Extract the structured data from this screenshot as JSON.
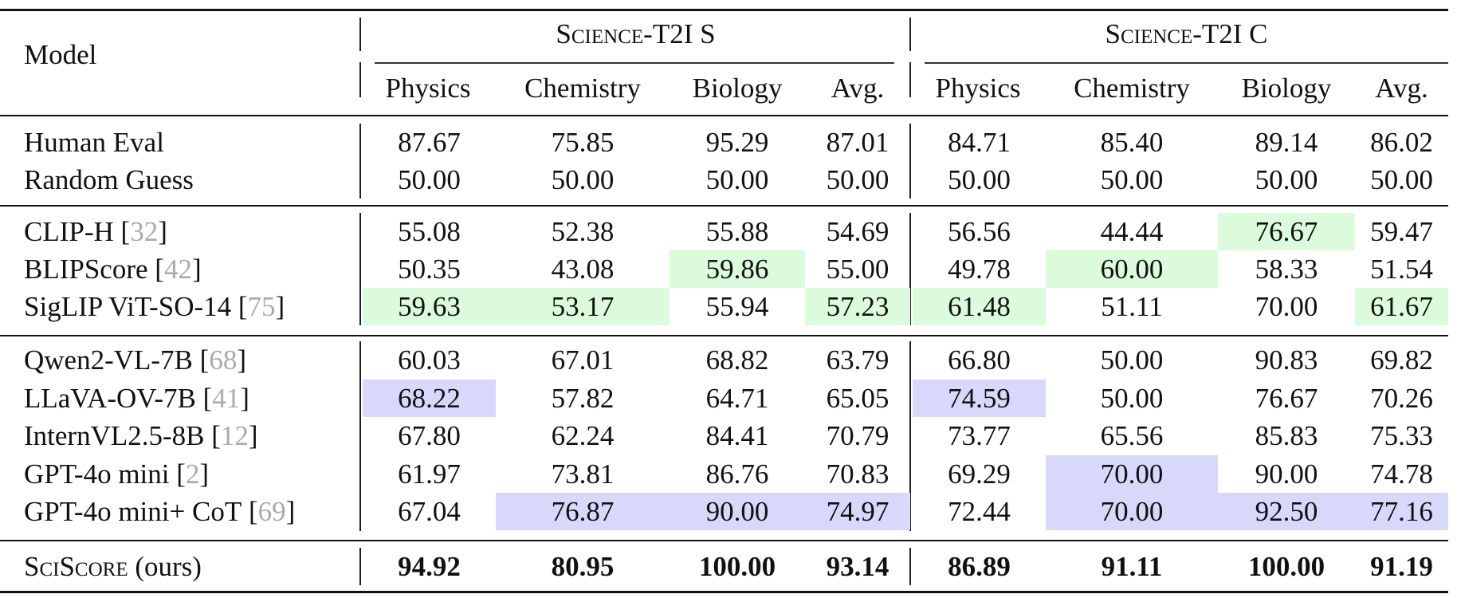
{
  "header": {
    "model_label": "Model",
    "groups": [
      "Science-T2I S",
      "Science-T2I C"
    ],
    "subjects": [
      "Physics",
      "Chemistry",
      "Biology",
      "Avg."
    ]
  },
  "colors": {
    "green_highlight": "#dcfbdc",
    "blue_highlight": "#d8d8fb",
    "citation": "#aaaaaa"
  },
  "groups": [
    [
      {
        "name": "Human Eval",
        "ref": "",
        "values": [
          "87.67",
          "75.85",
          "95.29",
          "87.01",
          "84.71",
          "85.40",
          "89.14",
          "86.02"
        ],
        "hl": []
      },
      {
        "name": "Random Guess",
        "ref": "",
        "values": [
          "50.00",
          "50.00",
          "50.00",
          "50.00",
          "50.00",
          "50.00",
          "50.00",
          "50.00"
        ],
        "hl": []
      }
    ],
    [
      {
        "name": "CLIP-H",
        "ref": "32",
        "values": [
          "55.08",
          "52.38",
          "55.88",
          "54.69",
          "56.56",
          "44.44",
          "76.67",
          "59.47"
        ],
        "hl": [
          6
        ],
        "hlcolor": "green"
      },
      {
        "name": "BLIPScore",
        "ref": "42",
        "values": [
          "50.35",
          "43.08",
          "59.86",
          "55.00",
          "49.78",
          "60.00",
          "58.33",
          "51.54"
        ],
        "hl": [
          2,
          5
        ],
        "hlcolor": "green"
      },
      {
        "name": "SigLIP ViT-SO-14",
        "ref": "75",
        "values": [
          "59.63",
          "53.17",
          "55.94",
          "57.23",
          "61.48",
          "51.11",
          "70.00",
          "61.67"
        ],
        "hl": [
          0,
          1,
          3,
          4,
          7
        ],
        "hlcolor": "green"
      }
    ],
    [
      {
        "name": "Qwen2-VL-7B",
        "ref": "68",
        "values": [
          "60.03",
          "67.01",
          "68.82",
          "63.79",
          "66.80",
          "50.00",
          "90.83",
          "69.82"
        ],
        "hl": []
      },
      {
        "name": "LLaVA-OV-7B",
        "ref": "41",
        "values": [
          "68.22",
          "57.82",
          "64.71",
          "65.05",
          "74.59",
          "50.00",
          "76.67",
          "70.26"
        ],
        "hl": [
          0,
          4
        ],
        "hlcolor": "blue"
      },
      {
        "name": "InternVL2.5-8B",
        "ref": "12",
        "values": [
          "67.80",
          "62.24",
          "84.41",
          "70.79",
          "73.77",
          "65.56",
          "85.83",
          "75.33"
        ],
        "hl": []
      },
      {
        "name": "GPT-4o mini",
        "ref": "2",
        "values": [
          "61.97",
          "73.81",
          "86.76",
          "70.83",
          "69.29",
          "70.00",
          "90.00",
          "74.78"
        ],
        "hl": [
          5
        ],
        "hlcolor": "blue"
      },
      {
        "name": "GPT-4o mini+ CoT",
        "ref": "69",
        "values": [
          "67.04",
          "76.87",
          "90.00",
          "74.97",
          "72.44",
          "70.00",
          "92.50",
          "77.16"
        ],
        "hl": [
          1,
          2,
          3,
          5,
          6,
          7
        ],
        "hlcolor": "blue"
      }
    ],
    [
      {
        "name": "SciScore",
        "suffix": " (ours)",
        "ref": "",
        "values": [
          "94.92",
          "80.95",
          "100.00",
          "93.14",
          "86.89",
          "91.11",
          "100.00",
          "91.19"
        ],
        "hl": [],
        "bold": true
      }
    ]
  ]
}
